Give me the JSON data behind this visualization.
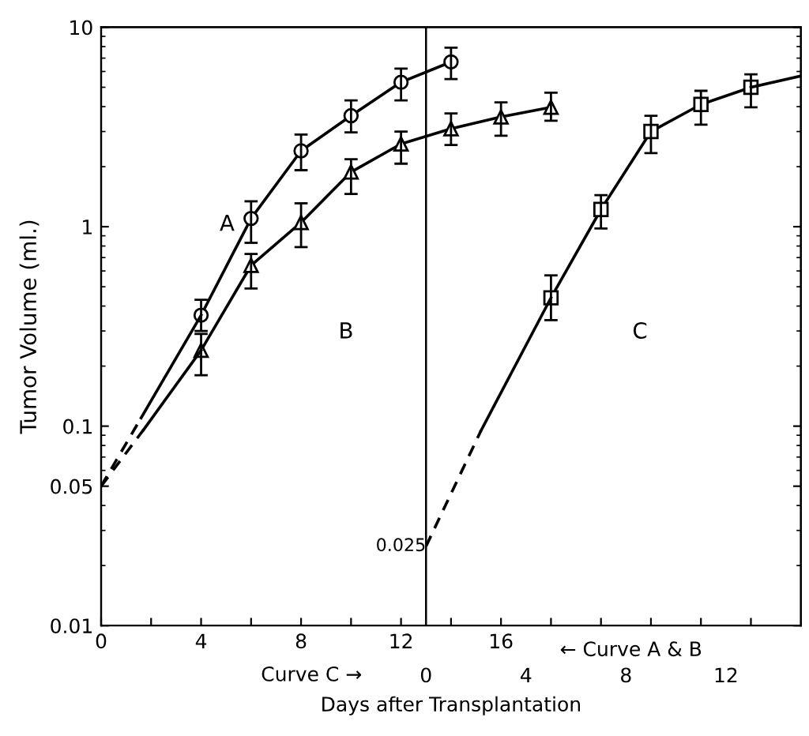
{
  "chart_data": {
    "type": "line",
    "xlabel": "Days after Transplantation",
    "ylabel": "Tumor Volume (ml.)",
    "log": true,
    "grid": false,
    "xlim": [
      0,
      28
    ],
    "xticks": [
      0,
      {
        "value": 2,
        "label": null
      },
      4,
      {
        "value": 6,
        "label": null
      },
      8,
      {
        "value": 10,
        "label": null
      },
      12,
      {
        "value": 14,
        "label": null
      },
      16,
      {
        "value": 18,
        "label": null
      },
      {
        "value": 20,
        "label": null
      },
      {
        "value": 22,
        "label": null
      },
      {
        "value": 24,
        "label": null
      },
      {
        "value": 26,
        "label": null
      }
    ],
    "x2lim": [
      -13,
      15
    ],
    "x2ticks": [
      0,
      4,
      8,
      12
    ],
    "ylim": [
      0.01,
      10
    ],
    "yticks": [
      {
        "value": 0.01,
        "label": "0.01"
      },
      {
        "value": 0.05,
        "label": "0.05"
      },
      {
        "value": 0.1,
        "label": "0.1"
      },
      1,
      10
    ],
    "ref_lines": [
      {
        "axis": "x",
        "value": 13,
        "color": "#000000"
      }
    ],
    "series": [
      {
        "color": "#000000",
        "marker": "circle",
        "line_style": "solid",
        "x": [
          4,
          6,
          8,
          10,
          12,
          14
        ],
        "values": [
          0.36,
          1.1,
          2.4,
          3.6,
          5.3,
          6.7
        ],
        "errors": [
          [
            0.3,
            0.43
          ],
          [
            0.83,
            1.34
          ],
          [
            1.92,
            2.9
          ],
          [
            2.97,
            4.3
          ],
          [
            4.3,
            6.2
          ],
          [
            5.5,
            7.9
          ]
        ]
      },
      {
        "color": "#000000",
        "marker": "triangle",
        "line_style": "solid",
        "x": [
          4,
          6,
          8,
          10,
          12,
          14,
          16,
          18
        ],
        "values": [
          0.24,
          0.64,
          1.05,
          1.88,
          2.6,
          3.1,
          3.55,
          3.97
        ],
        "errors": [
          [
            0.18,
            0.29
          ],
          [
            0.49,
            0.73
          ],
          [
            0.79,
            1.31
          ],
          [
            1.46,
            2.18
          ],
          [
            2.07,
            3.0
          ],
          [
            2.57,
            3.7
          ],
          [
            2.86,
            4.2
          ],
          [
            3.4,
            4.7
          ]
        ]
      },
      {
        "color": "#000000",
        "marker": "square",
        "line_style": "solid",
        "axis": "x2",
        "x": [
          5,
          7,
          9,
          11,
          13
        ],
        "values": [
          0.44,
          1.22,
          3.0,
          4.1,
          5.0
        ],
        "errors": [
          [
            0.34,
            0.57
          ],
          [
            0.98,
            1.44
          ],
          [
            2.34,
            3.6
          ],
          [
            3.25,
            4.8
          ],
          [
            3.97,
            5.8
          ]
        ]
      },
      {
        "color": "#000000",
        "marker": "none",
        "line_style": "dashed",
        "x": [
          0,
          1.6
        ],
        "values": [
          0.05,
          0.11
        ]
      },
      {
        "color": "#000000",
        "marker": "none",
        "line_style": "solid",
        "x": [
          1.6,
          4
        ],
        "values": [
          0.11,
          0.36
        ]
      },
      {
        "color": "#000000",
        "marker": "none",
        "line_style": "dashed",
        "x": [
          0,
          1.7
        ],
        "values": [
          0.05,
          0.096
        ]
      },
      {
        "color": "#000000",
        "marker": "none",
        "line_style": "solid",
        "x": [
          1.7,
          4
        ],
        "values": [
          0.096,
          0.24
        ]
      },
      {
        "color": "#000000",
        "marker": "none",
        "line_style": "dashed",
        "axis": "x2",
        "x": [
          0,
          2.2
        ],
        "values": [
          0.025,
          0.095
        ]
      },
      {
        "color": "#000000",
        "marker": "none",
        "line_style": "solid",
        "axis": "x2",
        "x": [
          2.2,
          5
        ],
        "values": [
          0.095,
          0.44
        ]
      },
      {
        "color": "#000000",
        "marker": "none",
        "line_style": "solid",
        "axis": "x2",
        "x": [
          13,
          15
        ],
        "values": [
          5.0,
          5.7
        ]
      }
    ],
    "annotations": [
      "A",
      "B",
      "C",
      {
        "text": "0.025",
        "x": 13,
        "y": 0.025
      },
      "Curve C →",
      "← Curve A & B"
    ]
  }
}
